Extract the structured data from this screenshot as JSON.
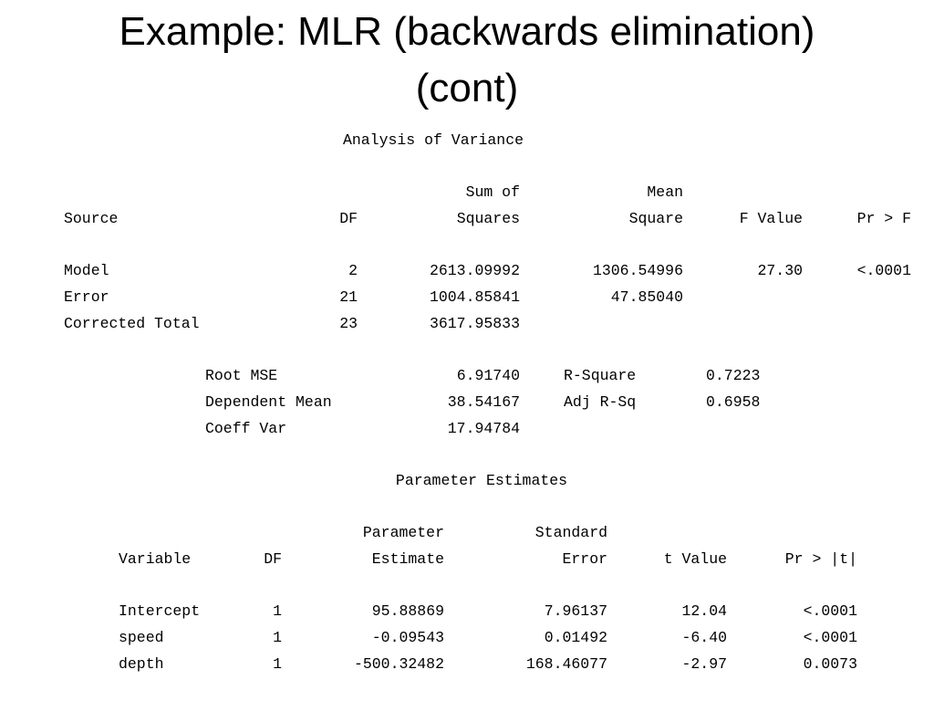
{
  "title": {
    "line1": "Example: MLR (backwards elimination)",
    "line2": "(cont)"
  },
  "anova": {
    "heading": "Analysis of Variance",
    "header_top": {
      "sum_of": "Sum of",
      "mean": "Mean"
    },
    "header": {
      "source": "Source",
      "df": "DF",
      "squares": "Squares",
      "square": "Square",
      "f_value": "F Value",
      "pr_f": "Pr > F"
    },
    "rows": [
      {
        "source": "Model",
        "df": "2",
        "ss": "2613.09992",
        "ms": "1306.54996",
        "f": "27.30",
        "p": "<.0001"
      },
      {
        "source": "Error",
        "df": "21",
        "ss": "1004.85841",
        "ms": "47.85040",
        "f": "",
        "p": ""
      },
      {
        "source": "Corrected Total",
        "df": "23",
        "ss": "3617.95833",
        "ms": "",
        "f": "",
        "p": ""
      }
    ]
  },
  "fit": {
    "root_mse_label": "Root MSE",
    "root_mse": "6.91740",
    "dep_mean_label": "Dependent Mean",
    "dep_mean": "38.54167",
    "coeff_var_label": "Coeff Var",
    "coeff_var": "17.94784",
    "rsq_label": "R-Square",
    "rsq": "0.7223",
    "adj_rsq_label": "Adj R-Sq",
    "adj_rsq": "0.6958"
  },
  "params": {
    "heading": "Parameter Estimates",
    "header_top": {
      "parameter": "Parameter",
      "standard": "Standard"
    },
    "header": {
      "variable": "Variable",
      "df": "DF",
      "estimate": "Estimate",
      "error": "Error",
      "t_value": "t Value",
      "pr_t": "Pr > |t|"
    },
    "rows": [
      {
        "variable": "Intercept",
        "df": "1",
        "estimate": "95.88869",
        "se": "7.96137",
        "t": "12.04",
        "p": "<.0001"
      },
      {
        "variable": "speed",
        "df": "1",
        "estimate": "-0.09543",
        "se": "0.01492",
        "t": "-6.40",
        "p": "<.0001"
      },
      {
        "variable": "depth",
        "df": "1",
        "estimate": "-500.32482",
        "se": "168.46077",
        "t": "-2.97",
        "p": "0.0073"
      }
    ]
  }
}
